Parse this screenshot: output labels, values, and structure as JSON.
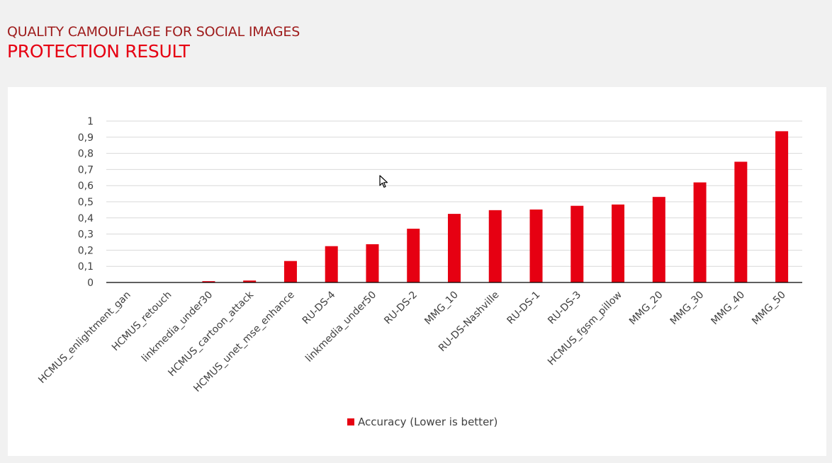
{
  "header": {
    "subtitle": "QUALITY CAMOUFLAGE FOR SOCIAL IMAGES",
    "title": "PROTECTION RESULT"
  },
  "colors": {
    "bar": "#e60012",
    "subtitle": "#9e1b1b",
    "title": "#e60012",
    "background": "#f1f1f1",
    "panel": "#ffffff"
  },
  "chart_data": {
    "type": "bar",
    "title": "",
    "xlabel": "",
    "ylabel": "",
    "ylim": [
      0,
      1
    ],
    "yticks": [
      "0",
      "0,1",
      "0,2",
      "0,3",
      "0,4",
      "0,5",
      "0,6",
      "0,7",
      "0,8",
      "0,9",
      "1"
    ],
    "grid": true,
    "legend_position": "bottom",
    "categories": [
      "HCMUS_enlightment_gan",
      "HCMUS_retouch",
      "linkmedia_under30",
      "HCMUS_cartoon_attack",
      "HCMUS_unet_mse_enhance",
      "RU-DS-4",
      "linkmedia_under50",
      "RU-DS-2",
      "MMG_10",
      "RU-DS-Nashville",
      "RU-DS-1",
      "RU-DS-3",
      "HCMUS_fgsm_pillow",
      "MMG_20",
      "MMG_30",
      "MMG_40",
      "MMG_50"
    ],
    "series": [
      {
        "name": "Accuracy (Lower is better)",
        "values": [
          0,
          0,
          0.008,
          0.012,
          0.133,
          0.225,
          0.237,
          0.333,
          0.425,
          0.448,
          0.452,
          0.475,
          0.483,
          0.53,
          0.62,
          0.748,
          0.937
        ]
      }
    ]
  },
  "icons": {
    "cursor": "mouse-pointer-icon"
  }
}
